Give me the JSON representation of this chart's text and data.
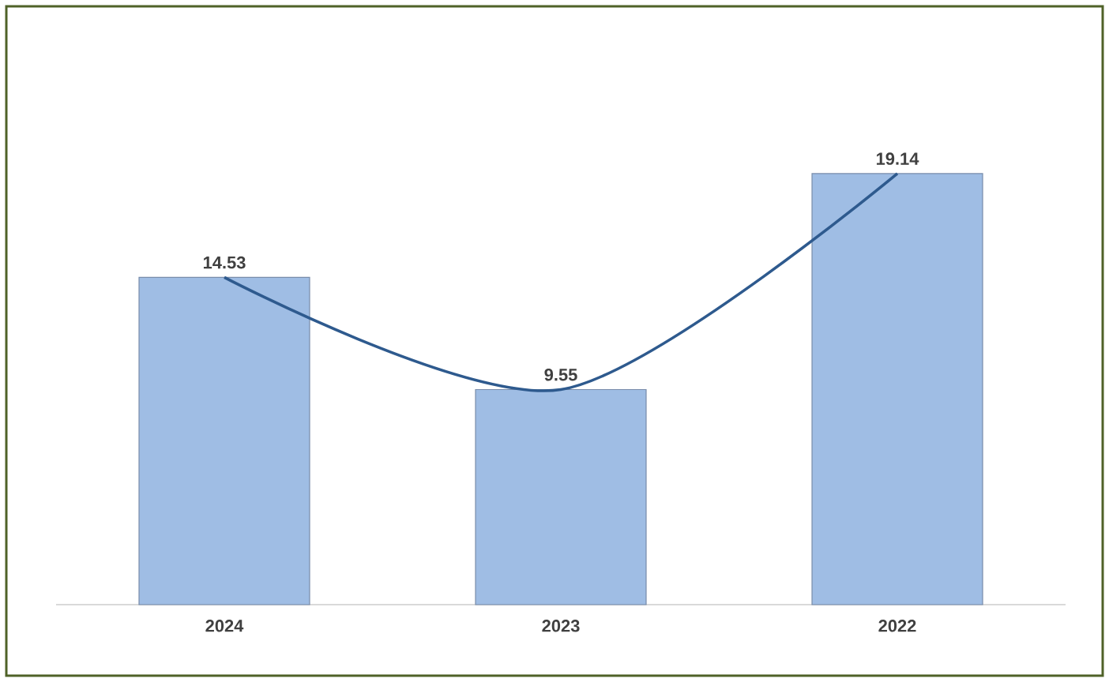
{
  "chart_data": {
    "type": "bar",
    "categories": [
      "2024",
      "2023",
      "2022"
    ],
    "series": [
      {
        "color": "#9fbde4",
        "values": [
          14.53,
          9.55,
          19.14
        ],
        "value_labels": [
          "14.53",
          "9.55",
          "19.14"
        ]
      },
      {
        "type": "line",
        "color": "#2e5a8e",
        "values": [
          14.53,
          9.55,
          19.14
        ]
      }
    ]
  }
}
